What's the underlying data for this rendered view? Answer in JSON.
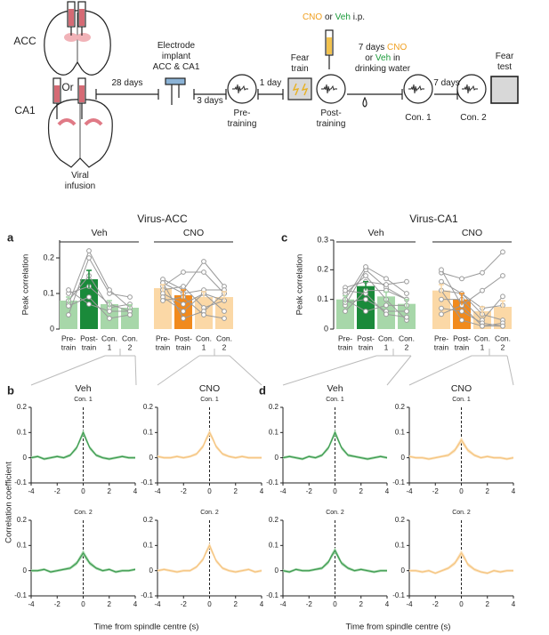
{
  "schematic": {
    "acc": "ACC",
    "or": "Or",
    "ca1": "CA1",
    "viral": [
      "Viral",
      "infusion"
    ],
    "d28": "28 days",
    "implant": [
      "Electrode",
      "implant",
      "ACC & CA1"
    ],
    "d3": "3 days",
    "pre": [
      "Pre-",
      "training"
    ],
    "d1": "1 day",
    "train": [
      "Fear",
      "train"
    ],
    "ip": [
      "CNO",
      "or",
      "Veh",
      "i.p."
    ],
    "post": [
      "Post-",
      "training"
    ],
    "water": [
      "7 days",
      "CNO",
      "or",
      "Veh",
      "in",
      "drinking water"
    ],
    "con1": "Con. 1",
    "d7": "7 days",
    "con2": "Con. 2",
    "test": [
      "Fear",
      "test"
    ]
  },
  "chart_data": [
    {
      "type": "bar",
      "panel": "a",
      "title": "Virus-ACC",
      "ylabel": "Peak correlation",
      "ylim": [
        0,
        0.25
      ],
      "yticks": [
        0,
        0.1,
        0.2
      ],
      "categories": [
        [
          "Pre-",
          "train"
        ],
        [
          "Post-",
          "train"
        ],
        [
          "Con.",
          "1"
        ],
        [
          "Con.",
          "2"
        ]
      ],
      "point_color": "#9a9a9a",
      "groups": [
        {
          "name": "Veh",
          "color": "#1a8a3a",
          "colors": [
            "#a7d7a9",
            "#1a8a3a",
            "#a7d7a9",
            "#a7d7a9"
          ],
          "values": [
            0.08,
            0.14,
            0.07,
            0.06
          ],
          "errors": [
            0.01,
            0.025,
            0.01,
            0.008
          ],
          "individuals": [
            [
              0.04,
              0.2,
              0.1,
              0.09
            ],
            [
              0.07,
              0.22,
              0.11,
              0.06
            ],
            [
              0.08,
              0.15,
              0.06,
              0.07
            ],
            [
              0.1,
              0.12,
              0.07,
              0.05
            ],
            [
              0.11,
              0.07,
              0.05,
              0.05
            ],
            [
              0.065,
              0.09,
              0.03,
              0.04
            ]
          ]
        },
        {
          "name": "CNO",
          "color": "#f18a1d",
          "colors": [
            "#fbd8a6",
            "#f18a1d",
            "#fbd8a6",
            "#fbd8a6"
          ],
          "values": [
            0.115,
            0.095,
            0.09,
            0.09
          ],
          "errors": [
            0.01,
            0.015,
            0.015,
            0.015
          ],
          "individuals": [
            [
              0.14,
              0.11,
              0.19,
              0.12
            ],
            [
              0.12,
              0.16,
              0.16,
              0.1
            ],
            [
              0.13,
              0.1,
              0.11,
              0.11
            ],
            [
              0.11,
              0.12,
              0.06,
              0.08
            ],
            [
              0.1,
              0.07,
              0.1,
              0.05
            ],
            [
              0.13,
              0.03,
              0.05,
              0.1
            ],
            [
              0.09,
              0.05,
              0.1,
              0.08
            ],
            [
              0.08,
              0.09,
              0.04,
              0.03
            ]
          ]
        }
      ]
    },
    {
      "type": "bar",
      "panel": "c",
      "title": "Virus-CA1",
      "ylabel": "Peak correlation",
      "ylim": [
        0,
        0.3
      ],
      "yticks": [
        0,
        0.1,
        0.2,
        0.3
      ],
      "categories": [
        [
          "Pre-",
          "train"
        ],
        [
          "Post-",
          "train"
        ],
        [
          "Con.",
          "1"
        ],
        [
          "Con.",
          "2"
        ]
      ],
      "point_color": "#9a9a9a",
      "groups": [
        {
          "name": "Veh",
          "color": "#1a8a3a",
          "colors": [
            "#a7d7a9",
            "#1a8a3a",
            "#a7d7a9",
            "#a7d7a9"
          ],
          "values": [
            0.1,
            0.145,
            0.11,
            0.085
          ],
          "errors": [
            0.012,
            0.015,
            0.015,
            0.015
          ],
          "individuals": [
            [
              0.08,
              0.2,
              0.14,
              0.1
            ],
            [
              0.1,
              0.21,
              0.17,
              0.12
            ],
            [
              0.14,
              0.16,
              0.15,
              0.16
            ],
            [
              0.12,
              0.18,
              0.1,
              0.03
            ],
            [
              0.09,
              0.1,
              0.06,
              0.06
            ],
            [
              0.13,
              0.12,
              0.05,
              0.04
            ],
            [
              0.06,
              0.13,
              0.13,
              0.1
            ],
            [
              0.1,
              0.06,
              0.08,
              0.08
            ]
          ]
        },
        {
          "name": "CNO",
          "color": "#f18a1d",
          "colors": [
            "#fbd8a6",
            "#f18a1d",
            "#fbd8a6",
            "#fbd8a6"
          ],
          "values": [
            0.13,
            0.1,
            0.06,
            0.075
          ],
          "errors": [
            0.02,
            0.02,
            0.015,
            0.02
          ],
          "individuals": [
            [
              0.19,
              0.17,
              0.19,
              0.26
            ],
            [
              0.2,
              0.08,
              0.13,
              0.18
            ],
            [
              0.16,
              0.12,
              0.07,
              0.08
            ],
            [
              0.13,
              0.12,
              0.05,
              0.03
            ],
            [
              0.1,
              0.1,
              0.03,
              0.11
            ],
            [
              0.07,
              0.06,
              0.02,
              0.01
            ],
            [
              0.05,
              0.08,
              0.01,
              0.02
            ],
            [
              0.13,
              0.03,
              0.01,
              0.01
            ]
          ]
        }
      ]
    },
    {
      "type": "line",
      "panel": "b",
      "ylabel": "Correlation coefficient",
      "xlabel": "Time from spindle centre (s)",
      "xlim": [
        -4,
        4
      ],
      "xticks": [
        -4,
        -2,
        0,
        2,
        4
      ],
      "ylim": [
        -0.1,
        0.2
      ],
      "yticks": [
        -0.1,
        0,
        0.1,
        0.2
      ],
      "x": [
        -4,
        -3.5,
        -3,
        -2.5,
        -2,
        -1.5,
        -1,
        -0.5,
        -0.25,
        0,
        0.25,
        0.5,
        1,
        1.5,
        2,
        2.5,
        3,
        3.5,
        4
      ],
      "columns": [
        {
          "name": "Veh",
          "color": "#3c9a50",
          "band_color": "#a9d8ae",
          "plots": [
            {
              "title": "Con. 1",
              "values": [
                0,
                0.005,
                -0.005,
                0,
                0.005,
                0,
                0.01,
                0.04,
                0.07,
                0.1,
                0.07,
                0.04,
                0.01,
                0,
                -0.005,
                0,
                0.005,
                0,
                0
              ],
              "errors": [
                0.005,
                0.005,
                0.005,
                0.005,
                0.005,
                0.005,
                0.006,
                0.008,
                0.01,
                0.012,
                0.01,
                0.008,
                0.006,
                0.005,
                0.005,
                0.005,
                0.005,
                0.005,
                0.005
              ]
            },
            {
              "title": "Con. 2",
              "values": [
                0,
                0,
                0.005,
                -0.005,
                0,
                0.005,
                0.01,
                0.03,
                0.05,
                0.07,
                0.05,
                0.03,
                0.01,
                0,
                0.005,
                -0.005,
                0,
                0,
                0.005
              ],
              "errors": [
                0.005,
                0.005,
                0.005,
                0.005,
                0.005,
                0.005,
                0.006,
                0.008,
                0.01,
                0.012,
                0.01,
                0.008,
                0.006,
                0.005,
                0.005,
                0.005,
                0.005,
                0.005,
                0.005
              ]
            }
          ]
        },
        {
          "name": "CNO",
          "color": "#f5c47f",
          "band_color": "#fbe4c2",
          "plots": [
            {
              "title": "Con. 1",
              "values": [
                0.005,
                0,
                0,
                0.005,
                0,
                0.005,
                0.015,
                0.045,
                0.075,
                0.1,
                0.075,
                0.045,
                0.015,
                0.005,
                0,
                0.005,
                0,
                0,
                0
              ],
              "errors": [
                0.005,
                0.005,
                0.005,
                0.005,
                0.005,
                0.005,
                0.006,
                0.008,
                0.01,
                0.012,
                0.01,
                0.008,
                0.006,
                0.005,
                0.005,
                0.005,
                0.005,
                0.005,
                0.005
              ]
            },
            {
              "title": "Con. 2",
              "values": [
                0,
                0.005,
                0,
                -0.005,
                0,
                0,
                0.015,
                0.045,
                0.075,
                0.1,
                0.07,
                0.04,
                0.01,
                0,
                -0.005,
                0,
                0.005,
                -0.005,
                0
              ],
              "errors": [
                0.005,
                0.005,
                0.005,
                0.005,
                0.005,
                0.005,
                0.006,
                0.008,
                0.01,
                0.012,
                0.01,
                0.008,
                0.006,
                0.005,
                0.005,
                0.005,
                0.005,
                0.005,
                0.005
              ]
            }
          ]
        }
      ]
    },
    {
      "type": "line",
      "panel": "d",
      "xlabel": "Time from spindle centre (s)",
      "xlim": [
        -4,
        4
      ],
      "xticks": [
        -4,
        -2,
        0,
        2,
        4
      ],
      "ylim": [
        -0.1,
        0.2
      ],
      "yticks": [
        -0.1,
        0,
        0.1,
        0.2
      ],
      "x": [
        -4,
        -3.5,
        -3,
        -2.5,
        -2,
        -1.5,
        -1,
        -0.5,
        -0.25,
        0,
        0.25,
        0.5,
        1,
        1.5,
        2,
        2.5,
        3,
        3.5,
        4
      ],
      "columns": [
        {
          "name": "Veh",
          "color": "#3c9a50",
          "band_color": "#a9d8ae",
          "plots": [
            {
              "title": "Con. 1",
              "values": [
                0,
                0.005,
                0,
                -0.005,
                0.005,
                0,
                0.01,
                0.04,
                0.07,
                0.1,
                0.07,
                0.04,
                0.01,
                0.005,
                0,
                -0.005,
                0,
                0.005,
                0
              ],
              "errors": [
                0.005,
                0.005,
                0.005,
                0.005,
                0.005,
                0.005,
                0.006,
                0.008,
                0.01,
                0.012,
                0.01,
                0.008,
                0.006,
                0.005,
                0.005,
                0.005,
                0.005,
                0.005,
                0.005
              ]
            },
            {
              "title": "Con. 2",
              "values": [
                0,
                -0.005,
                0.005,
                0,
                0,
                0.005,
                0.01,
                0.035,
                0.06,
                0.08,
                0.055,
                0.03,
                0.01,
                0,
                0.005,
                0,
                -0.005,
                0,
                0
              ],
              "errors": [
                0.005,
                0.005,
                0.005,
                0.005,
                0.005,
                0.005,
                0.006,
                0.008,
                0.01,
                0.012,
                0.01,
                0.008,
                0.006,
                0.005,
                0.005,
                0.005,
                0.005,
                0.005,
                0.005
              ]
            }
          ]
        },
        {
          "name": "CNO",
          "color": "#f5c47f",
          "band_color": "#fbe4c2",
          "plots": [
            {
              "title": "Con. 1",
              "values": [
                0.005,
                0,
                0,
                -0.005,
                0,
                0.005,
                0.01,
                0.03,
                0.05,
                0.07,
                0.05,
                0.03,
                0.01,
                0,
                0.005,
                0,
                0,
                -0.005,
                0
              ],
              "errors": [
                0.005,
                0.005,
                0.005,
                0.005,
                0.005,
                0.005,
                0.006,
                0.008,
                0.01,
                0.012,
                0.01,
                0.008,
                0.006,
                0.005,
                0.005,
                0.005,
                0.005,
                0.005,
                0.005
              ]
            },
            {
              "title": "Con. 2",
              "values": [
                0,
                0,
                -0.005,
                0,
                -0.01,
                0,
                0.01,
                0.03,
                0.05,
                0.07,
                0.05,
                0.025,
                0.005,
                -0.005,
                -0.01,
                0,
                -0.005,
                0,
                0
              ],
              "errors": [
                0.005,
                0.005,
                0.005,
                0.005,
                0.005,
                0.005,
                0.006,
                0.008,
                0.01,
                0.012,
                0.01,
                0.008,
                0.006,
                0.005,
                0.005,
                0.005,
                0.005,
                0.005,
                0.005
              ]
            }
          ]
        }
      ]
    }
  ]
}
